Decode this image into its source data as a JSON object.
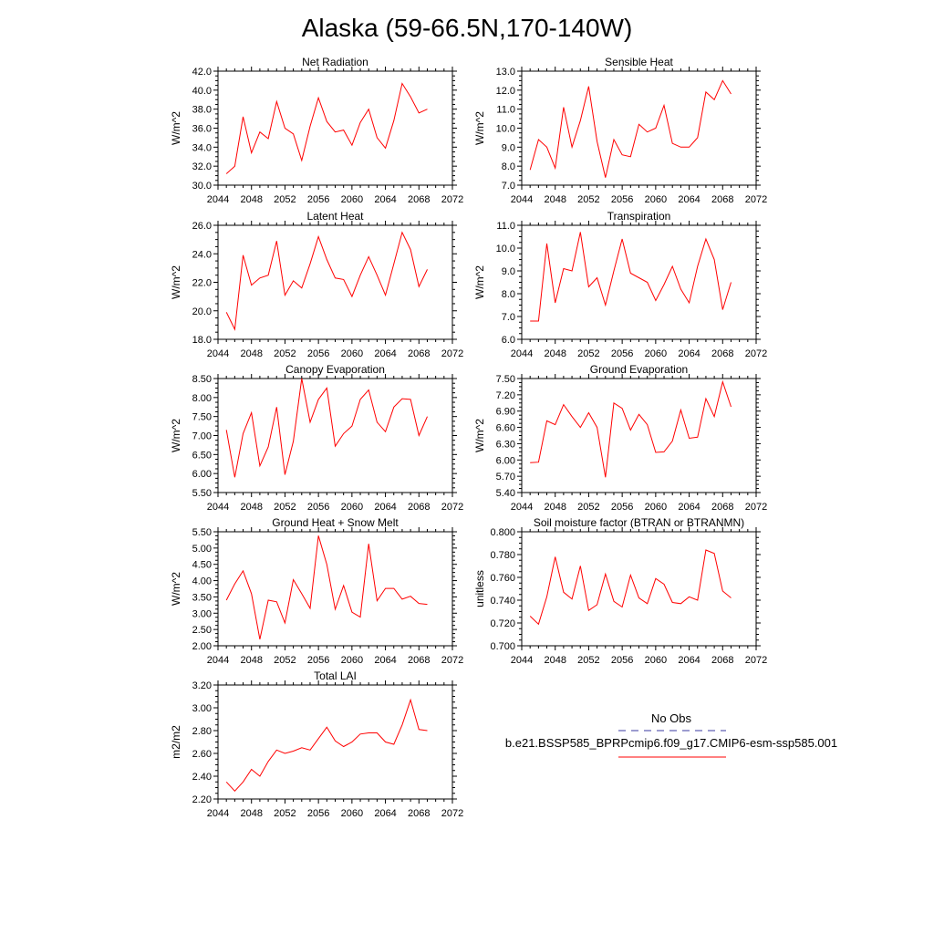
{
  "figure": {
    "title": "Alaska (59-66.5N,170-140W)"
  },
  "legend": {
    "obs_label": "No Obs",
    "obs_color": "#3a3aa0",
    "model_label": "b.e21.BSSP585_BPRPcmip6.f09_g17.CMIP6-esm-ssp585.001",
    "model_color": "#ff0000"
  },
  "chart_data": [
    {
      "type": "line",
      "title": "Net Radiation",
      "ylabel": "W/m^2",
      "xlim": [
        2044,
        2072
      ],
      "ylim": [
        30.0,
        42.0
      ],
      "yticks": [
        "30.0",
        "32.0",
        "34.0",
        "36.0",
        "38.0",
        "40.0",
        "42.0"
      ],
      "xticks": [
        "2044",
        "2048",
        "2052",
        "2056",
        "2060",
        "2064",
        "2068",
        "2072"
      ],
      "x": [
        2045,
        2046,
        2047,
        2048,
        2049,
        2050,
        2051,
        2052,
        2053,
        2054,
        2055,
        2056,
        2057,
        2058,
        2059,
        2060,
        2061,
        2062,
        2063,
        2064,
        2065,
        2066,
        2067,
        2068,
        2069
      ],
      "series": [
        {
          "values": [
            31.2,
            32.0,
            37.2,
            33.4,
            35.6,
            34.9,
            38.8,
            36.0,
            35.4,
            32.6,
            36.2,
            39.2,
            36.7,
            35.6,
            35.8,
            34.2,
            36.6,
            38.0,
            35.0,
            33.9,
            36.8,
            40.7,
            39.3,
            37.6,
            38.0
          ]
        }
      ]
    },
    {
      "type": "line",
      "title": "Sensible Heat",
      "ylabel": "W/m^2",
      "xlim": [
        2044,
        2072
      ],
      "ylim": [
        7.0,
        13.0
      ],
      "yticks": [
        "7.0",
        "8.0",
        "9.0",
        "10.0",
        "11.0",
        "12.0",
        "13.0"
      ],
      "xticks": [
        "2044",
        "2048",
        "2052",
        "2056",
        "2060",
        "2064",
        "2068",
        "2072"
      ],
      "x": [
        2045,
        2046,
        2047,
        2048,
        2049,
        2050,
        2051,
        2052,
        2053,
        2054,
        2055,
        2056,
        2057,
        2058,
        2059,
        2060,
        2061,
        2062,
        2063,
        2064,
        2065,
        2066,
        2067,
        2068,
        2069
      ],
      "series": [
        {
          "values": [
            7.8,
            9.4,
            9.0,
            7.9,
            11.1,
            9.0,
            10.4,
            12.2,
            9.3,
            7.4,
            9.4,
            8.6,
            8.5,
            10.2,
            9.8,
            10.0,
            11.2,
            9.2,
            9.0,
            9.0,
            9.5,
            11.9,
            11.5,
            12.5,
            11.8
          ]
        }
      ]
    },
    {
      "type": "line",
      "title": "Latent Heat",
      "ylabel": "W/m^2",
      "xlim": [
        2044,
        2072
      ],
      "ylim": [
        18.0,
        26.0
      ],
      "yticks": [
        "18.0",
        "20.0",
        "22.0",
        "24.0",
        "26.0"
      ],
      "xticks": [
        "2044",
        "2048",
        "2052",
        "2056",
        "2060",
        "2064",
        "2068",
        "2072"
      ],
      "x": [
        2045,
        2046,
        2047,
        2048,
        2049,
        2050,
        2051,
        2052,
        2053,
        2054,
        2055,
        2056,
        2057,
        2058,
        2059,
        2060,
        2061,
        2062,
        2063,
        2064,
        2065,
        2066,
        2067,
        2068,
        2069
      ],
      "series": [
        {
          "values": [
            19.9,
            18.7,
            23.9,
            21.8,
            22.3,
            22.5,
            24.9,
            21.1,
            22.1,
            21.6,
            23.3,
            25.2,
            23.6,
            22.3,
            22.2,
            21.0,
            22.5,
            23.8,
            22.5,
            21.1,
            23.3,
            25.5,
            24.3,
            21.7,
            22.9
          ]
        }
      ]
    },
    {
      "type": "line",
      "title": "Transpiration",
      "ylabel": "W/m^2",
      "xlim": [
        2044,
        2072
      ],
      "ylim": [
        6.0,
        11.0
      ],
      "yticks": [
        "6.0",
        "7.0",
        "8.0",
        "9.0",
        "10.0",
        "11.0"
      ],
      "xticks": [
        "2044",
        "2048",
        "2052",
        "2056",
        "2060",
        "2064",
        "2068",
        "2072"
      ],
      "x": [
        2045,
        2046,
        2047,
        2048,
        2049,
        2050,
        2051,
        2052,
        2053,
        2054,
        2055,
        2056,
        2057,
        2058,
        2059,
        2060,
        2061,
        2062,
        2063,
        2064,
        2065,
        2066,
        2067,
        2068,
        2069
      ],
      "series": [
        {
          "values": [
            6.8,
            6.8,
            10.2,
            7.6,
            9.1,
            9.0,
            10.7,
            8.3,
            8.7,
            7.5,
            9.0,
            10.4,
            8.9,
            8.7,
            8.5,
            7.7,
            8.4,
            9.2,
            8.2,
            7.6,
            9.2,
            10.4,
            9.5,
            7.3,
            8.5
          ]
        }
      ]
    },
    {
      "type": "line",
      "title": "Canopy Evaporation",
      "ylabel": "W/m^2",
      "xlim": [
        2044,
        2072
      ],
      "ylim": [
        5.5,
        8.5
      ],
      "yticks": [
        "5.50",
        "6.00",
        "6.50",
        "7.00",
        "7.50",
        "8.00",
        "8.50"
      ],
      "xticks": [
        "2044",
        "2048",
        "2052",
        "2056",
        "2060",
        "2064",
        "2068",
        "2072"
      ],
      "x": [
        2045,
        2046,
        2047,
        2048,
        2049,
        2050,
        2051,
        2052,
        2053,
        2054,
        2055,
        2056,
        2057,
        2058,
        2059,
        2060,
        2061,
        2062,
        2063,
        2064,
        2065,
        2066,
        2067,
        2068,
        2069
      ],
      "series": [
        {
          "values": [
            7.15,
            5.9,
            7.05,
            7.6,
            6.2,
            6.7,
            7.75,
            5.97,
            6.85,
            8.5,
            7.35,
            7.95,
            8.25,
            6.72,
            7.05,
            7.25,
            7.95,
            8.2,
            7.35,
            7.1,
            7.75,
            7.97,
            7.95,
            7.0,
            7.5
          ]
        }
      ]
    },
    {
      "type": "line",
      "title": "Ground Evaporation",
      "ylabel": "W/m^2",
      "xlim": [
        2044,
        2072
      ],
      "ylim": [
        5.4,
        7.5
      ],
      "yticks": [
        "5.40",
        "5.70",
        "6.00",
        "6.30",
        "6.60",
        "6.90",
        "7.20",
        "7.50"
      ],
      "xticks": [
        "2044",
        "2048",
        "2052",
        "2056",
        "2060",
        "2064",
        "2068",
        "2072"
      ],
      "x": [
        2045,
        2046,
        2047,
        2048,
        2049,
        2050,
        2051,
        2052,
        2053,
        2054,
        2055,
        2056,
        2057,
        2058,
        2059,
        2060,
        2061,
        2062,
        2063,
        2064,
        2065,
        2066,
        2067,
        2068,
        2069
      ],
      "series": [
        {
          "values": [
            5.95,
            5.96,
            6.72,
            6.65,
            7.02,
            6.8,
            6.6,
            6.87,
            6.6,
            5.68,
            7.05,
            6.95,
            6.55,
            6.84,
            6.65,
            6.14,
            6.15,
            6.35,
            6.92,
            6.4,
            6.42,
            7.13,
            6.8,
            7.44,
            6.98
          ]
        }
      ]
    },
    {
      "type": "line",
      "title": "Ground Heat + Snow Melt",
      "ylabel": "W/m^2",
      "xlim": [
        2044,
        2072
      ],
      "ylim": [
        2.0,
        5.5
      ],
      "yticks": [
        "2.00",
        "2.50",
        "3.00",
        "3.50",
        "4.00",
        "4.50",
        "5.00",
        "5.50"
      ],
      "xticks": [
        "2044",
        "2048",
        "2052",
        "2056",
        "2060",
        "2064",
        "2068",
        "2072"
      ],
      "x": [
        2045,
        2046,
        2047,
        2048,
        2049,
        2050,
        2051,
        2052,
        2053,
        2054,
        2055,
        2056,
        2057,
        2058,
        2059,
        2060,
        2061,
        2062,
        2063,
        2064,
        2065,
        2066,
        2067,
        2068,
        2069
      ],
      "series": [
        {
          "values": [
            3.4,
            3.9,
            4.3,
            3.6,
            2.2,
            3.4,
            3.35,
            2.7,
            4.03,
            3.6,
            3.15,
            5.38,
            4.5,
            3.12,
            3.85,
            3.03,
            2.88,
            5.13,
            3.38,
            3.76,
            3.76,
            3.43,
            3.52,
            3.3,
            3.27
          ]
        }
      ]
    },
    {
      "type": "line",
      "title": "Soil moisture factor (BTRAN or BTRANMN)",
      "ylabel": "unitless",
      "xlim": [
        2044,
        2072
      ],
      "ylim": [
        0.7,
        0.8
      ],
      "yticks": [
        "0.700",
        "0.720",
        "0.740",
        "0.760",
        "0.780",
        "0.800"
      ],
      "xticks": [
        "2044",
        "2048",
        "2052",
        "2056",
        "2060",
        "2064",
        "2068",
        "2072"
      ],
      "x": [
        2045,
        2046,
        2047,
        2048,
        2049,
        2050,
        2051,
        2052,
        2053,
        2054,
        2055,
        2056,
        2057,
        2058,
        2059,
        2060,
        2061,
        2062,
        2063,
        2064,
        2065,
        2066,
        2067,
        2068,
        2069
      ],
      "series": [
        {
          "values": [
            0.726,
            0.719,
            0.743,
            0.778,
            0.747,
            0.741,
            0.77,
            0.731,
            0.736,
            0.763,
            0.739,
            0.734,
            0.762,
            0.742,
            0.737,
            0.759,
            0.754,
            0.738,
            0.737,
            0.743,
            0.74,
            0.784,
            0.781,
            0.748,
            0.742
          ]
        }
      ]
    },
    {
      "type": "line",
      "title": "Total LAI",
      "ylabel": "m2/m2",
      "xlim": [
        2044,
        2072
      ],
      "ylim": [
        2.2,
        3.2
      ],
      "yticks": [
        "2.20",
        "2.40",
        "2.60",
        "2.80",
        "3.00",
        "3.20"
      ],
      "xticks": [
        "2044",
        "2048",
        "2052",
        "2056",
        "2060",
        "2064",
        "2068",
        "2072"
      ],
      "x": [
        2045,
        2046,
        2047,
        2048,
        2049,
        2050,
        2051,
        2052,
        2053,
        2054,
        2055,
        2056,
        2057,
        2058,
        2059,
        2060,
        2061,
        2062,
        2063,
        2064,
        2065,
        2066,
        2067,
        2068,
        2069
      ],
      "series": [
        {
          "values": [
            2.35,
            2.27,
            2.35,
            2.46,
            2.4,
            2.53,
            2.63,
            2.6,
            2.62,
            2.65,
            2.63,
            2.73,
            2.83,
            2.71,
            2.66,
            2.7,
            2.77,
            2.78,
            2.78,
            2.7,
            2.68,
            2.85,
            3.07,
            2.81,
            2.8
          ]
        }
      ]
    }
  ]
}
